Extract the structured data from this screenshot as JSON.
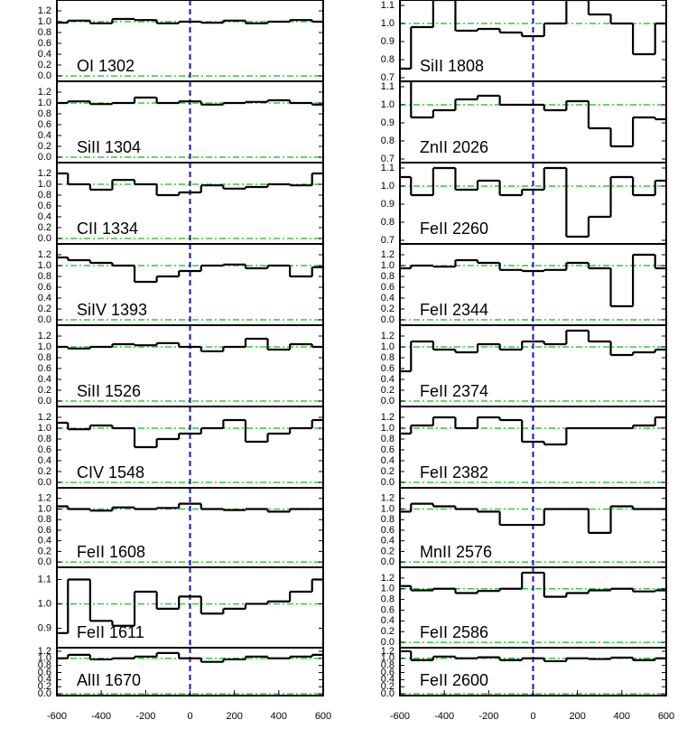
{
  "chart_data": [
    {
      "type": "line",
      "title": "OI 1302",
      "step": true,
      "x": [
        -600,
        -500,
        -400,
        -300,
        -200,
        -100,
        0,
        100,
        200,
        300,
        400,
        500,
        600
      ],
      "values": [
        0.98,
        1.02,
        0.97,
        1.05,
        1.03,
        0.97,
        1.0,
        0.98,
        1.02,
        0.97,
        1.0,
        1.03,
        1.0
      ],
      "xlim": [
        -600,
        600
      ],
      "ylim": [
        -0.1,
        1.4
      ],
      "yticks": [
        {
          "value": 0,
          "label": "0.0"
        },
        0.2,
        0.4,
        0.6,
        0.8,
        {
          "value": 1,
          "label": "1.0"
        },
        1.2
      ],
      "hlines": [
        0,
        1
      ],
      "vlines": [
        0
      ],
      "color": "#000000"
    },
    {
      "type": "line",
      "title": "SiII 1304",
      "step": true,
      "x": [
        -600,
        -500,
        -400,
        -300,
        -200,
        -100,
        0,
        100,
        200,
        300,
        400,
        500,
        600
      ],
      "values": [
        1.0,
        1.03,
        0.98,
        1.0,
        1.1,
        1.0,
        1.03,
        0.97,
        1.0,
        1.02,
        1.05,
        1.0,
        0.97
      ],
      "xlim": [
        -600,
        600
      ],
      "ylim": [
        -0.1,
        1.4
      ],
      "yticks": [
        {
          "value": 0,
          "label": "0.0"
        },
        0.2,
        0.4,
        0.6,
        0.8,
        {
          "value": 1,
          "label": "1.0"
        },
        1.2
      ],
      "hlines": [
        0,
        1
      ],
      "vlines": [
        0
      ],
      "color": "#000000"
    },
    {
      "type": "line",
      "title": "CII 1334",
      "step": true,
      "x": [
        -600,
        -500,
        -400,
        -300,
        -200,
        -100,
        0,
        100,
        200,
        300,
        400,
        500,
        600
      ],
      "values": [
        1.2,
        1.0,
        0.9,
        1.08,
        1.0,
        0.8,
        0.85,
        0.98,
        0.92,
        0.95,
        1.0,
        0.98,
        1.2
      ],
      "xlim": [
        -600,
        600
      ],
      "ylim": [
        -0.1,
        1.4
      ],
      "yticks": [
        {
          "value": 0,
          "label": "0.0"
        },
        0.2,
        0.4,
        0.6,
        0.8,
        {
          "value": 1,
          "label": "1.0"
        },
        1.2
      ],
      "hlines": [
        0,
        1
      ],
      "vlines": [
        0
      ],
      "color": "#000000"
    },
    {
      "type": "line",
      "title": "SiIV 1393",
      "step": true,
      "x": [
        -600,
        -500,
        -400,
        -300,
        -200,
        -100,
        0,
        100,
        200,
        300,
        400,
        500,
        600
      ],
      "values": [
        1.15,
        1.1,
        1.05,
        1.0,
        0.7,
        0.8,
        0.9,
        1.0,
        1.02,
        0.95,
        1.0,
        0.8,
        0.97
      ],
      "xlim": [
        -600,
        600
      ],
      "ylim": [
        -0.1,
        1.4
      ],
      "yticks": [
        {
          "value": 0,
          "label": "0.0"
        },
        0.2,
        0.4,
        0.6,
        0.8,
        {
          "value": 1,
          "label": "1.0"
        },
        1.2
      ],
      "hlines": [
        0,
        1
      ],
      "vlines": [
        0
      ],
      "color": "#000000"
    },
    {
      "type": "line",
      "title": "SiII 1526",
      "step": true,
      "x": [
        -600,
        -500,
        -400,
        -300,
        -200,
        -100,
        0,
        100,
        200,
        300,
        400,
        500,
        600
      ],
      "values": [
        1.0,
        0.97,
        1.0,
        1.05,
        1.03,
        1.07,
        1.0,
        0.92,
        1.0,
        1.15,
        0.95,
        1.05,
        1.0
      ],
      "xlim": [
        -600,
        600
      ],
      "ylim": [
        -0.1,
        1.4
      ],
      "yticks": [
        {
          "value": 0,
          "label": "0.0"
        },
        0.2,
        0.4,
        0.6,
        0.8,
        {
          "value": 1,
          "label": "1.0"
        },
        1.2
      ],
      "hlines": [
        0,
        1
      ],
      "vlines": [
        0
      ],
      "color": "#000000"
    },
    {
      "type": "line",
      "title": "CIV 1548",
      "step": true,
      "x": [
        -600,
        -500,
        -400,
        -300,
        -200,
        -100,
        0,
        100,
        200,
        300,
        400,
        500,
        600
      ],
      "values": [
        1.1,
        0.98,
        1.05,
        1.0,
        0.65,
        0.8,
        0.9,
        1.0,
        1.15,
        0.75,
        0.9,
        1.0,
        1.15
      ],
      "xlim": [
        -600,
        600
      ],
      "ylim": [
        -0.1,
        1.4
      ],
      "yticks": [
        {
          "value": 0,
          "label": "0.0"
        },
        0.2,
        0.4,
        0.6,
        0.8,
        {
          "value": 1,
          "label": "1.0"
        },
        1.2
      ],
      "hlines": [
        0,
        1
      ],
      "vlines": [
        0
      ],
      "color": "#000000"
    },
    {
      "type": "line",
      "title": "FeII 1608",
      "step": true,
      "x": [
        -600,
        -500,
        -400,
        -300,
        -200,
        -100,
        0,
        100,
        200,
        300,
        400,
        500,
        600
      ],
      "values": [
        1.05,
        1.0,
        0.97,
        1.03,
        1.0,
        1.02,
        1.1,
        1.0,
        0.98,
        1.0,
        0.95,
        1.0,
        1.0
      ],
      "xlim": [
        -600,
        600
      ],
      "ylim": [
        -0.1,
        1.4
      ],
      "yticks": [
        {
          "value": 0,
          "label": "0.0"
        },
        0.2,
        0.4,
        0.6,
        0.8,
        {
          "value": 1,
          "label": "1.0"
        },
        1.2
      ],
      "hlines": [
        0,
        1
      ],
      "vlines": [
        0
      ],
      "color": "#000000"
    },
    {
      "type": "line",
      "title": "FeII 1611",
      "step": true,
      "x": [
        -600,
        -500,
        -400,
        -300,
        -200,
        -100,
        0,
        100,
        200,
        300,
        400,
        500,
        600
      ],
      "values": [
        0.88,
        1.1,
        0.93,
        0.91,
        1.05,
        0.98,
        1.03,
        0.96,
        0.98,
        1.0,
        1.01,
        1.05,
        1.1
      ],
      "xlim": [
        -600,
        600
      ],
      "ylim": [
        0.82,
        1.15
      ],
      "yticks": [
        0.9,
        {
          "value": 1,
          "label": "1.0"
        },
        1.1
      ],
      "hlines": [
        0,
        1
      ],
      "vlines": [
        0
      ],
      "color": "#000000"
    },
    {
      "type": "line",
      "title": "AlII 1670",
      "step": true,
      "x": [
        -600,
        -500,
        -400,
        -300,
        -200,
        -100,
        0,
        100,
        200,
        300,
        400,
        500,
        600
      ],
      "values": [
        1.0,
        1.1,
        0.97,
        1.0,
        1.05,
        1.15,
        1.0,
        0.9,
        0.97,
        1.05,
        1.0,
        1.05,
        1.1
      ],
      "xlim": [
        -600,
        600
      ],
      "ylim": [
        -0.05,
        1.3
      ],
      "yticks": [
        {
          "value": 0,
          "label": "0.0"
        },
        0.2,
        0.4,
        0.6,
        0.8,
        {
          "value": 1,
          "label": "1.0"
        },
        1.2
      ],
      "xticks": [
        -600,
        -400,
        -200,
        0,
        200,
        400,
        600
      ],
      "hlines": [
        0,
        1
      ],
      "vlines": [
        0
      ],
      "color": "#000000"
    },
    {
      "type": "line",
      "title": "SiII 1808",
      "step": true,
      "x": [
        -600,
        -500,
        -400,
        -300,
        -200,
        -100,
        0,
        100,
        200,
        300,
        400,
        500,
        600
      ],
      "values": [
        0.75,
        0.98,
        1.13,
        0.96,
        0.97,
        0.95,
        0.93,
        1.0,
        1.13,
        1.05,
        1.0,
        0.83,
        1.0
      ],
      "xlim": [
        -600,
        600
      ],
      "ylim": [
        0.68,
        1.13
      ],
      "yticks": [
        0.7,
        0.8,
        0.9,
        {
          "value": 1,
          "label": "1.0"
        },
        1.1
      ],
      "hlines": [
        0,
        1
      ],
      "vlines": [
        0
      ],
      "color": "#000000"
    },
    {
      "type": "line",
      "title": "ZnII 2026",
      "step": true,
      "x": [
        -600,
        -500,
        -400,
        -300,
        -200,
        -100,
        0,
        100,
        200,
        300,
        400,
        500,
        600
      ],
      "values": [
        1.13,
        0.93,
        0.97,
        1.03,
        1.05,
        1.0,
        1.0,
        0.97,
        1.02,
        0.87,
        0.77,
        0.93,
        0.92
      ],
      "xlim": [
        -600,
        600
      ],
      "ylim": [
        0.68,
        1.13
      ],
      "yticks": [
        0.7,
        0.8,
        0.9,
        {
          "value": 1,
          "label": "1.0"
        },
        1.1
      ],
      "hlines": [
        0,
        1
      ],
      "vlines": [
        0
      ],
      "color": "#000000"
    },
    {
      "type": "line",
      "title": "FeII 2260",
      "step": true,
      "x": [
        -600,
        -500,
        -400,
        -300,
        -200,
        -100,
        0,
        100,
        200,
        300,
        400,
        500,
        600
      ],
      "values": [
        1.05,
        0.95,
        1.1,
        0.98,
        1.03,
        0.95,
        0.98,
        1.1,
        0.72,
        0.83,
        1.05,
        0.95,
        1.03
      ],
      "xlim": [
        -600,
        600
      ],
      "ylim": [
        0.68,
        1.13
      ],
      "yticks": [
        0.7,
        0.8,
        0.9,
        {
          "value": 1,
          "label": "1.0"
        },
        1.1
      ],
      "hlines": [
        0,
        1
      ],
      "vlines": [
        0
      ],
      "color": "#000000"
    },
    {
      "type": "line",
      "title": "FeII 2344",
      "step": true,
      "x": [
        -600,
        -500,
        -400,
        -300,
        -200,
        -100,
        0,
        100,
        200,
        300,
        400,
        500,
        600
      ],
      "values": [
        0.95,
        1.0,
        0.98,
        1.1,
        1.05,
        0.92,
        0.9,
        0.92,
        1.05,
        0.95,
        0.25,
        1.2,
        0.95
      ],
      "xlim": [
        -600,
        600
      ],
      "ylim": [
        -0.1,
        1.4
      ],
      "yticks": [
        {
          "value": 0,
          "label": "0.0"
        },
        0.2,
        0.4,
        0.6,
        0.8,
        {
          "value": 1,
          "label": "1.0"
        },
        1.2
      ],
      "hlines": [
        0,
        1
      ],
      "vlines": [
        0
      ],
      "color": "#000000"
    },
    {
      "type": "line",
      "title": "FeII 2374",
      "step": true,
      "x": [
        -600,
        -500,
        -400,
        -300,
        -200,
        -100,
        0,
        100,
        200,
        300,
        400,
        500,
        600
      ],
      "values": [
        0.55,
        1.1,
        0.95,
        0.9,
        1.05,
        0.95,
        1.1,
        1.05,
        1.3,
        1.1,
        0.85,
        0.9,
        0.95
      ],
      "xlim": [
        -600,
        600
      ],
      "ylim": [
        -0.1,
        1.4
      ],
      "yticks": [
        {
          "value": 0,
          "label": "0.0"
        },
        0.2,
        0.4,
        0.6,
        0.8,
        {
          "value": 1,
          "label": "1.0"
        },
        1.2
      ],
      "hlines": [
        0,
        1
      ],
      "vlines": [
        0
      ],
      "color": "#000000"
    },
    {
      "type": "line",
      "title": "FeII 2382",
      "step": true,
      "x": [
        -600,
        -500,
        -400,
        -300,
        -200,
        -100,
        0,
        100,
        200,
        300,
        400,
        500,
        600
      ],
      "values": [
        0.9,
        1.05,
        1.2,
        1.0,
        1.2,
        1.15,
        0.75,
        0.7,
        1.0,
        1.0,
        1.0,
        1.05,
        1.2
      ],
      "xlim": [
        -600,
        600
      ],
      "ylim": [
        -0.1,
        1.4
      ],
      "yticks": [
        {
          "value": 0,
          "label": "0.0"
        },
        0.2,
        0.4,
        0.6,
        0.8,
        {
          "value": 1,
          "label": "1.0"
        },
        1.2
      ],
      "hlines": [
        0,
        1
      ],
      "vlines": [
        0
      ],
      "color": "#000000"
    },
    {
      "type": "line",
      "title": "MnII 2576",
      "step": true,
      "x": [
        -600,
        -500,
        -400,
        -300,
        -200,
        -100,
        0,
        100,
        200,
        300,
        400,
        500,
        600
      ],
      "values": [
        0.95,
        1.1,
        1.05,
        1.0,
        0.95,
        0.7,
        0.7,
        1.0,
        1.0,
        0.55,
        1.05,
        1.0,
        1.0
      ],
      "xlim": [
        -600,
        600
      ],
      "ylim": [
        -0.1,
        1.4
      ],
      "yticks": [
        {
          "value": 0,
          "label": "0.0"
        },
        0.2,
        0.4,
        0.6,
        0.8,
        {
          "value": 1,
          "label": "1.0"
        },
        1.2
      ],
      "hlines": [
        0,
        1
      ],
      "vlines": [
        0
      ],
      "color": "#000000"
    },
    {
      "type": "line",
      "title": "FeII 2586",
      "step": true,
      "x": [
        -600,
        -500,
        -400,
        -300,
        -200,
        -100,
        0,
        100,
        200,
        300,
        400,
        500,
        600
      ],
      "values": [
        1.05,
        0.97,
        1.0,
        0.92,
        0.96,
        1.0,
        1.3,
        0.85,
        0.92,
        0.97,
        1.0,
        0.95,
        0.97
      ],
      "xlim": [
        -600,
        600
      ],
      "ylim": [
        -0.1,
        1.4
      ],
      "yticks": [
        {
          "value": 0,
          "label": "0.0"
        },
        0.2,
        0.4,
        0.6,
        0.8,
        {
          "value": 1,
          "label": "1.0"
        },
        1.2
      ],
      "hlines": [
        0,
        1
      ],
      "vlines": [
        0
      ],
      "color": "#000000"
    },
    {
      "type": "line",
      "title": "FeII 2600",
      "step": true,
      "x": [
        -600,
        -500,
        -400,
        -300,
        -200,
        -100,
        0,
        100,
        200,
        300,
        400,
        500,
        600
      ],
      "values": [
        1.2,
        0.95,
        1.05,
        1.0,
        1.03,
        0.95,
        1.0,
        0.92,
        1.0,
        0.98,
        1.02,
        0.95,
        1.0
      ],
      "xlim": [
        -600,
        600
      ],
      "ylim": [
        -0.05,
        1.3
      ],
      "yticks": [
        {
          "value": 0,
          "label": "0.0"
        },
        0.2,
        0.4,
        0.6,
        0.8,
        {
          "value": 1,
          "label": "1.0"
        },
        1.2
      ],
      "xticks": [
        -600,
        -400,
        -200,
        0,
        200,
        400,
        600
      ],
      "hlines": [
        0,
        1
      ],
      "vlines": [
        0
      ],
      "color": "#000000"
    }
  ]
}
